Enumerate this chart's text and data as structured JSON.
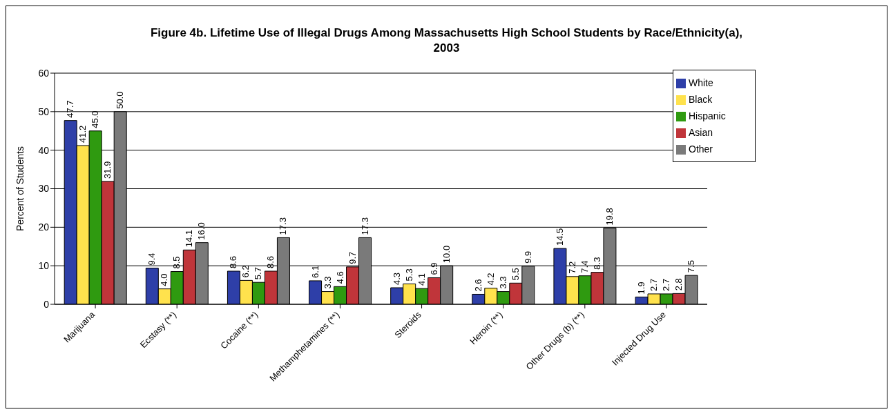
{
  "chart_data": {
    "type": "bar",
    "title": "Figure 4b.  Lifetime Use of Illegal Drugs Among Massachusetts High School Students by Race/Ethnicity(a), 2003",
    "ylabel": "Percent of Students",
    "categories": [
      "Marijuana",
      "Ecstasy (**)",
      "Cocaine (**)",
      "Methamphetamines (**)",
      "Steroids",
      "Heroin (**)",
      "Other Drugs (b) (**)",
      "Injected Drug Use"
    ],
    "series": [
      {
        "name": "White",
        "color": "#2e3fa8",
        "values": [
          47.7,
          9.4,
          8.6,
          6.1,
          4.3,
          2.6,
          14.5,
          1.9
        ],
        "value_labels": [
          "47.7",
          "9.4",
          "8.6",
          "6.1",
          "4.3",
          "2.6",
          "14.5",
          "1.9"
        ]
      },
      {
        "name": "Black",
        "color": "#ffe24d",
        "values": [
          41.2,
          4.0,
          6.2,
          3.3,
          5.3,
          4.2,
          7.2,
          2.7
        ],
        "value_labels": [
          "41.2",
          "4.0",
          "6.2",
          "3.3",
          "5.3",
          "4.2",
          "7.2",
          "2.7"
        ]
      },
      {
        "name": "Hispanic",
        "color": "#2f9a10",
        "values": [
          45.0,
          8.5,
          5.7,
          4.6,
          4.1,
          3.3,
          7.4,
          2.7
        ],
        "value_labels": [
          "45.0",
          "8.5",
          "5.7",
          "4.6",
          "4.1",
          "3.3",
          "7.4",
          "2.7"
        ]
      },
      {
        "name": "Asian",
        "color": "#c0353a",
        "values": [
          31.9,
          14.1,
          8.6,
          9.7,
          6.9,
          5.5,
          8.3,
          2.8
        ],
        "value_labels": [
          "31.9",
          "14.1",
          "8.6",
          "9.7",
          "6.9",
          "5.5",
          "8.3",
          "2.8"
        ]
      },
      {
        "name": "Other",
        "color": "#7a7a7a",
        "values": [
          50.0,
          16.0,
          17.3,
          17.3,
          10.0,
          9.9,
          19.8,
          7.5
        ],
        "value_labels": [
          "50.0",
          "16.0",
          "17.3",
          "17.3",
          "10.0",
          "9.9",
          "19.8",
          "7.5"
        ]
      }
    ],
    "ylim": [
      0,
      60
    ],
    "yticks": [
      0,
      10,
      20,
      30,
      40,
      50,
      60
    ],
    "grid": "y",
    "legend": "top right"
  }
}
